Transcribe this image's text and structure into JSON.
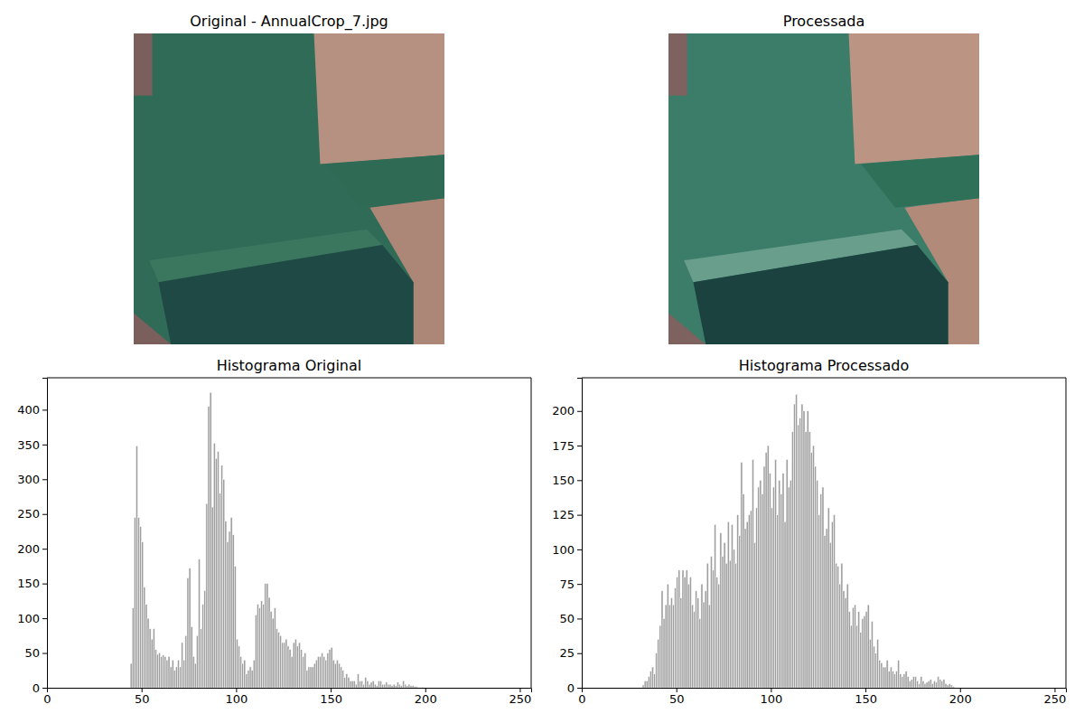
{
  "panels": [
    {
      "title": "Original - AnnualCrop_7.jpg"
    },
    {
      "title": "Processada"
    }
  ],
  "chart_data": [
    {
      "type": "histogram",
      "title": "Histograma Original",
      "color": "#9e9e9e",
      "xlim": [
        0,
        256
      ],
      "xticks": [
        0,
        50,
        100,
        150,
        200,
        250
      ],
      "ylim": [
        0,
        446
      ],
      "yticks": [
        0,
        50,
        100,
        150,
        200,
        250,
        300,
        350,
        400
      ],
      "bins": [
        44,
        45,
        46,
        47,
        48,
        49,
        50,
        51,
        52,
        53,
        54,
        55,
        56,
        57,
        58,
        59,
        60,
        61,
        62,
        63,
        64,
        65,
        66,
        67,
        68,
        69,
        70,
        71,
        72,
        73,
        74,
        75,
        76,
        77,
        78,
        79,
        80,
        81,
        82,
        83,
        84,
        85,
        86,
        87,
        88,
        89,
        90,
        91,
        92,
        93,
        94,
        95,
        96,
        97,
        98,
        99,
        100,
        101,
        102,
        103,
        104,
        105,
        106,
        107,
        108,
        109,
        110,
        111,
        112,
        113,
        114,
        115,
        116,
        117,
        118,
        119,
        120,
        121,
        122,
        123,
        124,
        125,
        126,
        127,
        128,
        129,
        130,
        131,
        132,
        133,
        134,
        135,
        136,
        137,
        138,
        139,
        140,
        141,
        142,
        143,
        144,
        145,
        146,
        147,
        148,
        149,
        150,
        151,
        152,
        153,
        154,
        155,
        156,
        157,
        158,
        159,
        160,
        161,
        162,
        163,
        164,
        165,
        166,
        167,
        168,
        169,
        170,
        171,
        172,
        173,
        174,
        175,
        176,
        177,
        178,
        179,
        180,
        181,
        182,
        183,
        184,
        185,
        186,
        187,
        188,
        189,
        190,
        191,
        192,
        193,
        194,
        195,
        196,
        197,
        198,
        199,
        200
      ],
      "values": [
        35,
        115,
        245,
        348,
        245,
        232,
        210,
        145,
        120,
        100,
        85,
        70,
        85,
        55,
        48,
        50,
        45,
        47,
        45,
        40,
        45,
        30,
        40,
        25,
        30,
        40,
        30,
        65,
        40,
        75,
        158,
        172,
        88,
        45,
        35,
        75,
        185,
        85,
        120,
        140,
        265,
        405,
        425,
        260,
        352,
        330,
        340,
        280,
        320,
        300,
        240,
        210,
        225,
        245,
        220,
        175,
        70,
        60,
        45,
        35,
        40,
        20,
        25,
        30,
        25,
        40,
        105,
        120,
        115,
        125,
        120,
        150,
        150,
        130,
        110,
        100,
        115,
        85,
        80,
        75,
        65,
        65,
        70,
        60,
        55,
        45,
        65,
        70,
        60,
        65,
        55,
        45,
        50,
        25,
        30,
        30,
        30,
        35,
        40,
        45,
        45,
        50,
        45,
        40,
        50,
        55,
        58,
        40,
        35,
        40,
        35,
        30,
        25,
        15,
        20,
        15,
        10,
        10,
        10,
        5,
        20,
        10,
        10,
        5,
        15,
        10,
        5,
        8,
        10,
        5,
        3,
        10,
        10,
        5,
        5,
        8,
        5,
        5,
        3,
        5,
        3,
        8,
        5,
        3,
        10,
        5,
        3,
        5,
        3,
        3,
        2,
        2,
        1,
        1,
        1,
        0
      ]
    },
    {
      "type": "histogram",
      "title": "Histograma Processado",
      "color": "#9e9e9e",
      "xlim": [
        0,
        256
      ],
      "xticks": [
        0,
        50,
        100,
        150,
        200,
        250
      ],
      "ylim": [
        0,
        224
      ],
      "yticks": [
        0,
        25,
        50,
        75,
        100,
        125,
        150,
        175,
        200
      ],
      "bins": [
        32,
        33,
        34,
        35,
        36,
        37,
        38,
        39,
        40,
        41,
        42,
        43,
        44,
        45,
        46,
        47,
        48,
        49,
        50,
        51,
        52,
        53,
        54,
        55,
        56,
        57,
        58,
        59,
        60,
        61,
        62,
        63,
        64,
        65,
        66,
        67,
        68,
        69,
        70,
        71,
        72,
        73,
        74,
        75,
        76,
        77,
        78,
        79,
        80,
        81,
        82,
        83,
        84,
        85,
        86,
        87,
        88,
        89,
        90,
        91,
        92,
        93,
        94,
        95,
        96,
        97,
        98,
        99,
        100,
        101,
        102,
        103,
        104,
        105,
        106,
        107,
        108,
        109,
        110,
        111,
        112,
        113,
        114,
        115,
        116,
        117,
        118,
        119,
        120,
        121,
        122,
        123,
        124,
        125,
        126,
        127,
        128,
        129,
        130,
        131,
        132,
        133,
        134,
        135,
        136,
        137,
        138,
        139,
        140,
        141,
        142,
        143,
        144,
        145,
        146,
        147,
        148,
        149,
        150,
        151,
        152,
        153,
        154,
        155,
        156,
        157,
        158,
        159,
        160,
        161,
        162,
        163,
        164,
        165,
        166,
        167,
        168,
        169,
        170,
        171,
        172,
        173,
        174,
        175,
        176,
        177,
        178,
        179,
        180,
        181,
        182,
        183,
        184,
        185,
        186,
        187,
        188,
        189,
        190,
        191,
        192,
        193,
        194,
        195,
        196,
        197,
        198
      ],
      "values": [
        2,
        5,
        5,
        8,
        12,
        15,
        10,
        25,
        35,
        45,
        70,
        50,
        60,
        75,
        60,
        65,
        60,
        72,
        80,
        85,
        65,
        85,
        80,
        85,
        75,
        80,
        60,
        55,
        70,
        65,
        50,
        75,
        62,
        70,
        90,
        60,
        95,
        85,
        118,
        80,
        75,
        112,
        95,
        105,
        90,
        120,
        92,
        118,
        100,
        90,
        125,
        110,
        163,
        140,
        115,
        120,
        125,
        128,
        165,
        105,
        130,
        145,
        150,
        140,
        160,
        170,
        175,
        155,
        130,
        145,
        165,
        125,
        150,
        140,
        155,
        120,
        165,
        145,
        150,
        185,
        205,
        212,
        190,
        195,
        205,
        200,
        185,
        200,
        185,
        170,
        175,
        160,
        150,
        125,
        140,
        145,
        110,
        115,
        130,
        105,
        120,
        125,
        90,
        88,
        75,
        90,
        70,
        65,
        75,
        55,
        45,
        58,
        60,
        45,
        55,
        40,
        50,
        52,
        55,
        60,
        35,
        48,
        30,
        25,
        35,
        20,
        18,
        15,
        15,
        20,
        12,
        15,
        12,
        10,
        12,
        20,
        10,
        8,
        10,
        12,
        8,
        5,
        6,
        8,
        8,
        5,
        3,
        8,
        5,
        3,
        4,
        5,
        6,
        3,
        5,
        4,
        8,
        6,
        5,
        6,
        3,
        2,
        3,
        2,
        1,
        0
      ]
    }
  ]
}
